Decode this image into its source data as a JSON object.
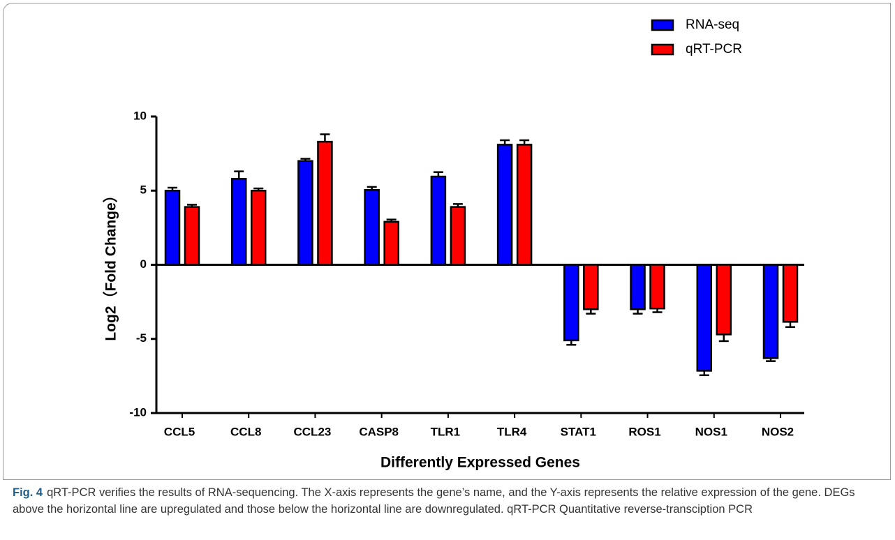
{
  "chart_data": {
    "type": "bar",
    "ylabel": "Log2（Fold Change）",
    "xlabel": "Differently Expressed Genes",
    "categories": [
      "CCL5",
      "CCL8",
      "CCL23",
      "CASP8",
      "TLR1",
      "TLR4",
      "STAT1",
      "ROS1",
      "NOS1",
      "NOS2"
    ],
    "series": [
      {
        "name": "RNA-seq",
        "color": "#0000ff",
        "values": [
          5.0,
          5.8,
          7.0,
          5.05,
          5.95,
          8.1,
          -5.1,
          -3.0,
          -7.15,
          -6.3
        ],
        "errors": [
          0.2,
          0.5,
          0.15,
          0.2,
          0.3,
          0.3,
          0.3,
          0.3,
          0.3,
          0.2
        ]
      },
      {
        "name": "qRT-PCR",
        "color": "#ff0000",
        "values": [
          3.9,
          5.0,
          8.3,
          2.9,
          3.9,
          8.1,
          -3.0,
          -2.95,
          -4.7,
          -3.85
        ],
        "errors": [
          0.15,
          0.15,
          0.5,
          0.15,
          0.2,
          0.3,
          0.3,
          0.25,
          0.45,
          0.35
        ]
      }
    ],
    "ylim": [
      -10,
      10
    ],
    "yticks": [
      -10,
      -5,
      0,
      5,
      10
    ],
    "legend": "top-right"
  },
  "caption": {
    "label": "Fig. 4",
    "text": "qRT-PCR verifies the results of RNA-sequencing. The X-axis represents the gene’s name, and the Y-axis represents the relative expression of the gene. DEGs above the horizontal line are upregulated and those below the horizontal line are downregulated. qRT-PCR Quantitative reverse-transciption PCR"
  }
}
